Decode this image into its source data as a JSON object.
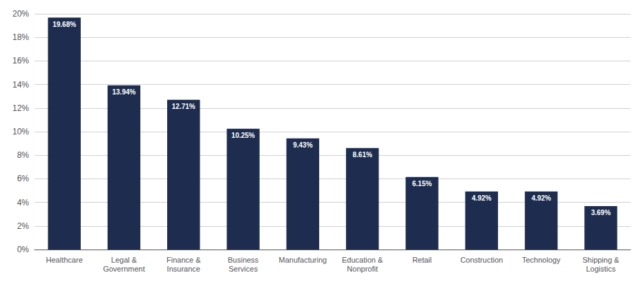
{
  "chart_data": {
    "type": "bar",
    "categories": [
      "Healthcare",
      "Legal &\nGovernment",
      "Finance &\nInsurance",
      "Business\nServices",
      "Manufacturing",
      "Education &\nNonprofit",
      "Retail",
      "Construction",
      "Technology",
      "Shipping &\nLogistics"
    ],
    "values": [
      19.68,
      13.94,
      12.71,
      10.25,
      9.43,
      8.61,
      6.15,
      4.92,
      4.92,
      3.69
    ],
    "value_labels": [
      "19.68%",
      "13.94%",
      "12.71%",
      "10.25%",
      "9.43%",
      "8.61%",
      "6.15%",
      "4.92%",
      "4.92%",
      "3.69%"
    ],
    "data_labels": true,
    "color": "#1e2d4f",
    "ylim": [
      0,
      20
    ],
    "yticks": [
      {
        "value": 0,
        "label": "0%"
      },
      {
        "value": 2,
        "label": "2%"
      },
      {
        "value": 4,
        "label": "4%"
      },
      {
        "value": 6,
        "label": "6%"
      },
      {
        "value": 8,
        "label": "8%"
      },
      {
        "value": 10,
        "label": "10%"
      },
      {
        "value": 12,
        "label": "12%"
      },
      {
        "value": 14,
        "label": "14%"
      },
      {
        "value": 16,
        "label": "16%"
      },
      {
        "value": 18,
        "label": "18%"
      },
      {
        "value": 20,
        "label": "20%"
      }
    ],
    "grid": true
  }
}
